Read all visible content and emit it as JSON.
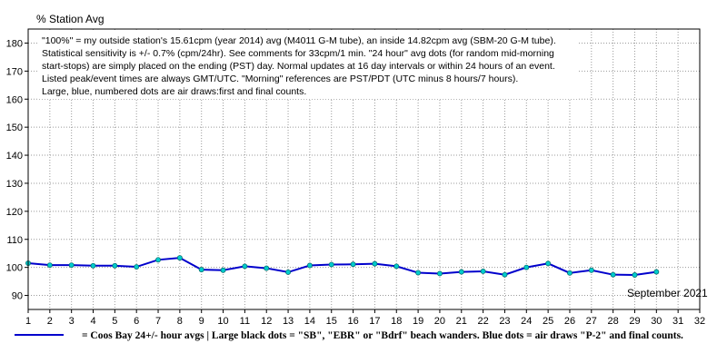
{
  "chart_data": {
    "type": "line",
    "ylabel": "% Station Avg",
    "period_label": "September 2021",
    "x_ticks": [
      1,
      2,
      3,
      4,
      5,
      6,
      7,
      8,
      9,
      10,
      11,
      12,
      13,
      14,
      15,
      16,
      17,
      18,
      19,
      20,
      21,
      22,
      23,
      24,
      25,
      26,
      27,
      28,
      29,
      30,
      31,
      32
    ],
    "y_ticks": [
      90,
      100,
      110,
      120,
      130,
      140,
      150,
      160,
      170,
      180
    ],
    "xlim": [
      1,
      32
    ],
    "ylim": [
      85,
      185
    ],
    "grid": "dotted",
    "notes": [
      "\"100%\" = my outside station's 15.61cpm (year 2014) avg (M4011 G-M tube), an inside 14.82cpm avg (SBM-20 G-M tube).",
      "Statistical sensitivity is +/- 0.7% (cpm/24hr). See comments for 33cpm/1 min. \"24 hour\" avg dots (for random mid-morning",
      "start-stops) are simply placed on the ending (PST) day. Normal updates at 16 day intervals or within 24 hours of an event.",
      "Listed peak/event times are always GMT/UTC.  \"Morning\" references are PST/PDT (UTC minus 8 hours/7 hours).",
      "Large, blue, numbered dots are air draws:first and final counts."
    ],
    "legend": "= Coos Bay 24+/- hour avgs | Large black dots = \"SB\", \"EBR\" or \"Bdrf\" beach wanders. Blue dots = air draws \"P-2\" and final counts.",
    "series": [
      {
        "color": "#0000cc",
        "marker_color": "#00cccc",
        "x": [
          1,
          2,
          3,
          4,
          5,
          6,
          7,
          8,
          9,
          10,
          11,
          12,
          13,
          14,
          15,
          16,
          17,
          18,
          19,
          20,
          21,
          22,
          23,
          24,
          25,
          26,
          27,
          28,
          29,
          30
        ],
        "y": [
          101.5,
          100.8,
          100.8,
          100.6,
          100.6,
          100.2,
          102.7,
          103.4,
          99.2,
          99.0,
          100.4,
          99.7,
          98.3,
          100.7,
          101.0,
          101.1,
          101.3,
          100.4,
          98.1,
          97.8,
          98.4,
          98.6,
          97.4,
          100.0,
          101.4,
          98.0,
          99.0,
          97.4,
          97.3,
          98.4
        ]
      }
    ]
  }
}
